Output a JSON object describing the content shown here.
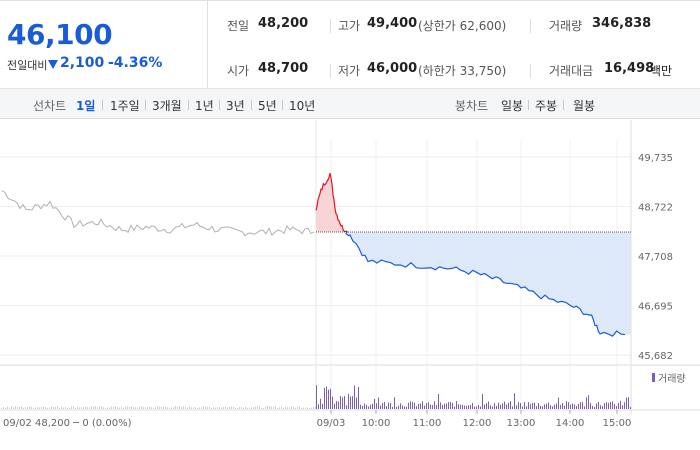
{
  "summary": {
    "price": "46,100",
    "change_label": "전일대비",
    "change_icon": "down-triangle-icon",
    "change_value": "2,100",
    "change_rate": "-4.36%",
    "prev_close_label": "전일",
    "prev_close": "48,200",
    "high_label": "고가",
    "high": "49,400",
    "upper_limit": "(상한가 62,600)",
    "volume_label": "거래량",
    "volume": "346,838",
    "open_label": "시가",
    "open": "48,700",
    "low_label": "저가",
    "low": "46,000",
    "lower_limit": "(하한가 33,750)",
    "amount_label": "거래대금",
    "amount": "16,498",
    "amount_unit": "백만"
  },
  "periods": {
    "line_label": "선차트",
    "line_items": [
      "1일",
      "1주일",
      "3개월",
      "1년",
      "3년",
      "5년",
      "10년"
    ],
    "active": "1일",
    "candle_label": "봉차트",
    "candle_items": [
      "일봉",
      "주봉",
      "월봉"
    ]
  },
  "colors": {
    "up": "#e0161e",
    "down": "#1a5bd6",
    "prev": "#b0b0b0",
    "fill_down": "#dde8f8",
    "fill_up": "#f9d4d6",
    "volume": "#7b5fb0"
  },
  "chart_data": {
    "type": "line",
    "y_ticks": [
      "49,735",
      "48,722",
      "47,708",
      "46,695",
      "45,682"
    ],
    "ylim": [
      45682,
      49735
    ],
    "reference_price": 48200,
    "x_ticks": [
      "09/03",
      "10:00",
      "11:00",
      "12:00",
      "13:00",
      "14:00",
      "15:00"
    ],
    "prev_day_label": "09/02  48,200 ─ 0 (0.00%)",
    "volume_legend": "거래량",
    "series": [
      {
        "x": [
          "09/02 09:00",
          "09/02 09:30",
          "09/02 10:00",
          "09/02 10:30",
          "09/02 11:00",
          "09/02 11:30",
          "09/02 12:00",
          "09/02 12:30",
          "09/02 13:00",
          "09/02 13:30",
          "09/02 14:00",
          "09/02 14:30",
          "09/02 15:00",
          "09/02 15:30"
        ],
        "values": [
          49050,
          48650,
          48800,
          48350,
          48400,
          48250,
          48300,
          48250,
          48350,
          48250,
          48200,
          48200,
          48250,
          48200
        ]
      },
      {
        "x": [
          "09:00",
          "09:10",
          "09:20",
          "09:30",
          "09:40",
          "09:50",
          "10:00",
          "10:30",
          "11:00",
          "11:30",
          "12:00",
          "12:30",
          "13:00",
          "13:30",
          "14:00",
          "14:30",
          "15:00",
          "15:20"
        ],
        "values": [
          48700,
          49100,
          49400,
          48600,
          48300,
          48150,
          47600,
          47550,
          47500,
          47450,
          47350,
          47200,
          47050,
          46850,
          46700,
          46500,
          46150,
          46100
        ]
      }
    ]
  }
}
